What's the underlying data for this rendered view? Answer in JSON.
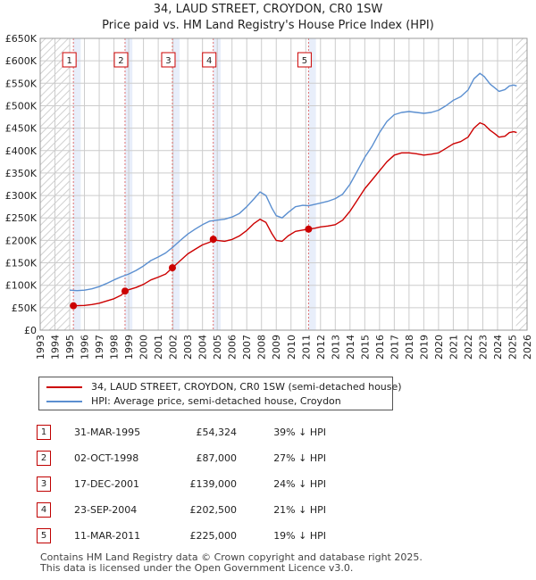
{
  "header": {
    "title": "34, LAUD STREET, CROYDON, CR0 1SW",
    "subtitle": "Price paid vs. HM Land Registry's House Price Index (HPI)"
  },
  "colors": {
    "property": "#cc0000",
    "hpi": "#5b8fd0",
    "band": "#e8eefa",
    "grid": "#cccccc",
    "marker_border": "#cc0000"
  },
  "chart_data": {
    "type": "line",
    "title": "34, LAUD STREET, CROYDON, CR0 1SW",
    "subtitle": "Price paid vs. HM Land Registry's House Price Index (HPI)",
    "xlabel": "",
    "ylabel": "",
    "xlim": [
      1993,
      2026
    ],
    "ylim": [
      0,
      650000
    ],
    "x_ticks": [
      1993,
      1994,
      1995,
      1996,
      1997,
      1998,
      1999,
      2000,
      2001,
      2002,
      2003,
      2004,
      2005,
      2006,
      2007,
      2008,
      2009,
      2010,
      2011,
      2012,
      2013,
      2014,
      2015,
      2016,
      2017,
      2018,
      2019,
      2020,
      2021,
      2022,
      2023,
      2024,
      2025,
      2026
    ],
    "y_ticks": [
      {
        "value": 0,
        "label": "£0"
      },
      {
        "value": 50000,
        "label": "£50K"
      },
      {
        "value": 100000,
        "label": "£100K"
      },
      {
        "value": 150000,
        "label": "£150K"
      },
      {
        "value": 200000,
        "label": "£200K"
      },
      {
        "value": 250000,
        "label": "£250K"
      },
      {
        "value": 300000,
        "label": "£300K"
      },
      {
        "value": 350000,
        "label": "£350K"
      },
      {
        "value": 400000,
        "label": "£400K"
      },
      {
        "value": 450000,
        "label": "£450K"
      },
      {
        "value": 500000,
        "label": "£500K"
      },
      {
        "value": 550000,
        "label": "£550K"
      },
      {
        "value": 600000,
        "label": "£600K"
      },
      {
        "value": 650000,
        "label": "£650K"
      }
    ],
    "grid": true,
    "hatched_ranges": [
      [
        1993,
        1995.0
      ],
      [
        2025.25,
        2026
      ]
    ],
    "shaded_bands": [
      [
        1995.25,
        1995.75
      ],
      [
        1998.75,
        1999.25
      ],
      [
        2001.95,
        2002.45
      ],
      [
        2004.73,
        2005.23
      ],
      [
        2011.19,
        2011.69
      ]
    ],
    "series": [
      {
        "name": "34, LAUD STREET, CROYDON, CR0 1SW (semi-detached house)",
        "color": "#cc0000",
        "points": [
          [
            1995.25,
            54324
          ],
          [
            1995.5,
            54500
          ],
          [
            1996,
            55000
          ],
          [
            1996.5,
            57000
          ],
          [
            1997,
            60000
          ],
          [
            1997.5,
            65000
          ],
          [
            1998,
            70000
          ],
          [
            1998.5,
            78000
          ],
          [
            1998.75,
            87000
          ],
          [
            1999,
            90000
          ],
          [
            1999.5,
            95000
          ],
          [
            2000,
            102000
          ],
          [
            2000.5,
            112000
          ],
          [
            2001,
            118000
          ],
          [
            2001.5,
            125000
          ],
          [
            2001.96,
            139000
          ],
          [
            2002.5,
            155000
          ],
          [
            2003,
            170000
          ],
          [
            2003.5,
            180000
          ],
          [
            2004,
            190000
          ],
          [
            2004.5,
            196000
          ],
          [
            2004.73,
            202500
          ],
          [
            2005,
            200000
          ],
          [
            2005.5,
            198000
          ],
          [
            2006,
            202000
          ],
          [
            2006.5,
            210000
          ],
          [
            2007,
            222000
          ],
          [
            2007.5,
            238000
          ],
          [
            2007.9,
            247000
          ],
          [
            2008.3,
            240000
          ],
          [
            2008.7,
            215000
          ],
          [
            2009,
            200000
          ],
          [
            2009.4,
            198000
          ],
          [
            2009.8,
            210000
          ],
          [
            2010.3,
            220000
          ],
          [
            2010.8,
            223000
          ],
          [
            2011.19,
            225000
          ],
          [
            2011.6,
            227000
          ],
          [
            2012,
            230000
          ],
          [
            2012.5,
            232000
          ],
          [
            2013,
            235000
          ],
          [
            2013.5,
            245000
          ],
          [
            2014,
            265000
          ],
          [
            2014.5,
            290000
          ],
          [
            2015,
            315000
          ],
          [
            2015.5,
            335000
          ],
          [
            2016,
            355000
          ],
          [
            2016.5,
            375000
          ],
          [
            2017,
            390000
          ],
          [
            2017.5,
            395000
          ],
          [
            2018,
            395000
          ],
          [
            2018.5,
            393000
          ],
          [
            2019,
            390000
          ],
          [
            2019.5,
            392000
          ],
          [
            2020,
            395000
          ],
          [
            2020.5,
            405000
          ],
          [
            2021,
            415000
          ],
          [
            2021.5,
            420000
          ],
          [
            2022,
            430000
          ],
          [
            2022.4,
            450000
          ],
          [
            2022.8,
            462000
          ],
          [
            2023.1,
            458000
          ],
          [
            2023.5,
            445000
          ],
          [
            2023.8,
            438000
          ],
          [
            2024.1,
            430000
          ],
          [
            2024.5,
            432000
          ],
          [
            2024.8,
            440000
          ],
          [
            2025.1,
            442000
          ],
          [
            2025.3,
            440000
          ]
        ]
      },
      {
        "name": "HPI: Average price, semi-detached house, Croydon",
        "color": "#5b8fd0",
        "points": [
          [
            1995,
            89000
          ],
          [
            1995.5,
            88000
          ],
          [
            1996,
            89000
          ],
          [
            1996.5,
            92000
          ],
          [
            1997,
            97000
          ],
          [
            1997.5,
            104000
          ],
          [
            1998,
            112000
          ],
          [
            1998.5,
            119000
          ],
          [
            1999,
            125000
          ],
          [
            1999.5,
            133000
          ],
          [
            2000,
            143000
          ],
          [
            2000.5,
            155000
          ],
          [
            2001,
            163000
          ],
          [
            2001.5,
            172000
          ],
          [
            2002,
            185000
          ],
          [
            2002.5,
            200000
          ],
          [
            2003,
            214000
          ],
          [
            2003.5,
            225000
          ],
          [
            2004,
            235000
          ],
          [
            2004.5,
            243000
          ],
          [
            2005,
            245000
          ],
          [
            2005.5,
            247000
          ],
          [
            2006,
            252000
          ],
          [
            2006.5,
            260000
          ],
          [
            2007,
            275000
          ],
          [
            2007.5,
            293000
          ],
          [
            2007.9,
            308000
          ],
          [
            2008.3,
            300000
          ],
          [
            2008.7,
            272000
          ],
          [
            2009,
            255000
          ],
          [
            2009.4,
            250000
          ],
          [
            2009.8,
            262000
          ],
          [
            2010.3,
            275000
          ],
          [
            2010.8,
            278000
          ],
          [
            2011.2,
            277000
          ],
          [
            2011.6,
            280000
          ],
          [
            2012,
            283000
          ],
          [
            2012.5,
            287000
          ],
          [
            2013,
            293000
          ],
          [
            2013.5,
            303000
          ],
          [
            2014,
            325000
          ],
          [
            2014.5,
            355000
          ],
          [
            2015,
            385000
          ],
          [
            2015.5,
            410000
          ],
          [
            2016,
            440000
          ],
          [
            2016.5,
            465000
          ],
          [
            2017,
            480000
          ],
          [
            2017.5,
            485000
          ],
          [
            2018,
            487000
          ],
          [
            2018.5,
            485000
          ],
          [
            2019,
            483000
          ],
          [
            2019.5,
            485000
          ],
          [
            2020,
            490000
          ],
          [
            2020.5,
            500000
          ],
          [
            2021,
            512000
          ],
          [
            2021.5,
            520000
          ],
          [
            2022,
            535000
          ],
          [
            2022.4,
            560000
          ],
          [
            2022.8,
            572000
          ],
          [
            2023.1,
            565000
          ],
          [
            2023.5,
            548000
          ],
          [
            2023.8,
            540000
          ],
          [
            2024.1,
            532000
          ],
          [
            2024.5,
            536000
          ],
          [
            2024.8,
            544000
          ],
          [
            2025.1,
            546000
          ],
          [
            2025.3,
            544000
          ]
        ]
      }
    ],
    "sale_markers": [
      {
        "label": "1",
        "x": 1995.25,
        "y": 54324
      },
      {
        "label": "2",
        "x": 1998.75,
        "y": 87000
      },
      {
        "label": "3",
        "x": 2001.96,
        "y": 139000
      },
      {
        "label": "4",
        "x": 2004.73,
        "y": 202500
      },
      {
        "label": "5",
        "x": 2011.19,
        "y": 225000
      }
    ]
  },
  "legend": {
    "items": [
      {
        "label": "34, LAUD STREET, CROYDON, CR0 1SW (semi-detached house)",
        "color": "#cc0000"
      },
      {
        "label": "HPI: Average price, semi-detached house, Croydon",
        "color": "#5b8fd0"
      }
    ]
  },
  "sales": [
    {
      "num": "1",
      "date": "31-MAR-1995",
      "price": "£54,324",
      "hpi": "39% ↓ HPI"
    },
    {
      "num": "2",
      "date": "02-OCT-1998",
      "price": "£87,000",
      "hpi": "27% ↓ HPI"
    },
    {
      "num": "3",
      "date": "17-DEC-2001",
      "price": "£139,000",
      "hpi": "24% ↓ HPI"
    },
    {
      "num": "4",
      "date": "23-SEP-2004",
      "price": "£202,500",
      "hpi": "21% ↓ HPI"
    },
    {
      "num": "5",
      "date": "11-MAR-2011",
      "price": "£225,000",
      "hpi": "19% ↓ HPI"
    }
  ],
  "footer": {
    "line1": "Contains HM Land Registry data © Crown copyright and database right 2025.",
    "line2": "This data is licensed under the Open Government Licence v3.0."
  }
}
